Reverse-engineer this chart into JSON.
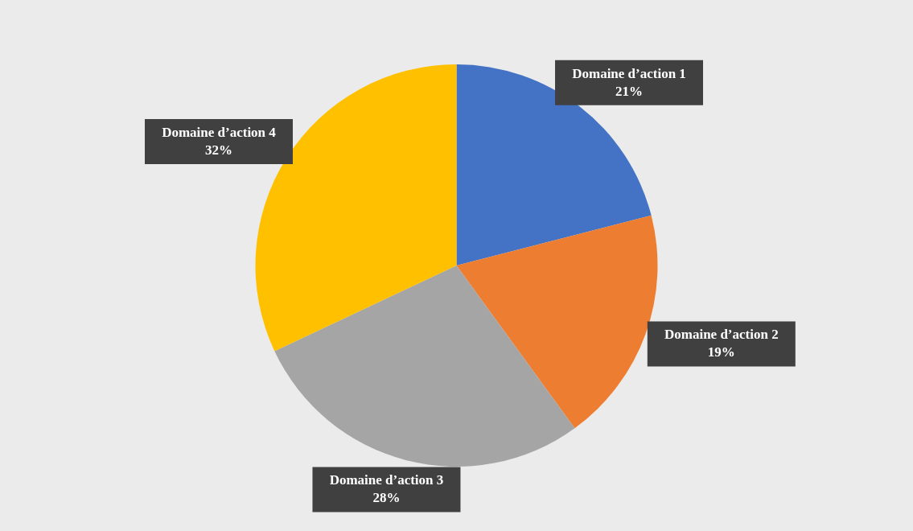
{
  "chart_data": {
    "type": "pie",
    "categories": [
      "Domaine d’action 1",
      "Domaine d’action 2",
      "Domaine d’action 3",
      "Domaine d’action 4"
    ],
    "values": [
      21,
      19,
      28,
      32
    ],
    "colors": [
      "#4472c4",
      "#ed7d31",
      "#a5a5a5",
      "#ffc000"
    ],
    "value_labels": [
      "21%",
      "19%",
      "28%",
      "32%"
    ]
  }
}
